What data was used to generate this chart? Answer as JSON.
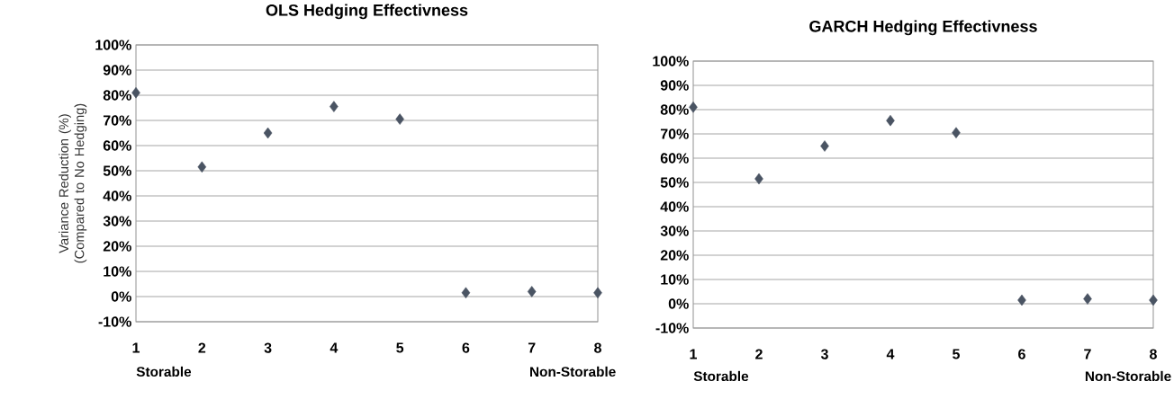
{
  "chart_data": [
    {
      "type": "scatter",
      "title": "OLS Hedging Effectivness",
      "ylabel": "Variance Reduction (%) (Compared to No Hedging)",
      "x": [
        1,
        2,
        3,
        4,
        5,
        6,
        7,
        8
      ],
      "series": [
        {
          "color": "#4a5463",
          "values": [
            81,
            51.5,
            65,
            75.5,
            70.5,
            1.5,
            2,
            1.5
          ]
        }
      ],
      "xlim": [
        1,
        8
      ],
      "xticks": [
        1,
        2,
        3,
        4,
        5,
        6,
        7,
        8
      ],
      "ylim": [
        -10,
        100
      ],
      "yticks": [
        {
          "value": -10,
          "label": "-10%"
        },
        {
          "value": 0,
          "label": "0%"
        },
        {
          "value": 10,
          "label": "10%"
        },
        {
          "value": 20,
          "label": "20%"
        },
        {
          "value": 30,
          "label": "30%"
        },
        {
          "value": 40,
          "label": "40%"
        },
        {
          "value": 50,
          "label": "50%"
        },
        {
          "value": 60,
          "label": "60%"
        },
        {
          "value": 70,
          "label": "70%"
        },
        {
          "value": 80,
          "label": "80%"
        },
        {
          "value": 90,
          "label": "90%"
        },
        {
          "value": 100,
          "label": "100%"
        }
      ],
      "grid": "y",
      "marker": "diamond",
      "annotations": [
        "Storable",
        "Non-Storable"
      ]
    },
    {
      "type": "scatter",
      "title": "GARCH Hedging Effectivness",
      "x": [
        1,
        2,
        3,
        4,
        5,
        6,
        7,
        8
      ],
      "series": [
        {
          "color": "#4a5463",
          "values": [
            81,
            51.5,
            65,
            75.5,
            70.5,
            1.5,
            2,
            1.5
          ]
        }
      ],
      "xlim": [
        1,
        8
      ],
      "xticks": [
        1,
        2,
        3,
        4,
        5,
        6,
        7,
        8
      ],
      "ylim": [
        -10,
        100
      ],
      "yticks": [
        {
          "value": -10,
          "label": "-10%"
        },
        {
          "value": 0,
          "label": "0%"
        },
        {
          "value": 10,
          "label": "10%"
        },
        {
          "value": 20,
          "label": "20%"
        },
        {
          "value": 30,
          "label": "30%"
        },
        {
          "value": 40,
          "label": "40%"
        },
        {
          "value": 50,
          "label": "50%"
        },
        {
          "value": 60,
          "label": "60%"
        },
        {
          "value": 70,
          "label": "70%"
        },
        {
          "value": 80,
          "label": "80%"
        },
        {
          "value": 90,
          "label": "90%"
        },
        {
          "value": 100,
          "label": "100%"
        }
      ],
      "grid": "y",
      "marker": "diamond",
      "annotations": [
        "Storable",
        "Non-Storable"
      ]
    }
  ]
}
